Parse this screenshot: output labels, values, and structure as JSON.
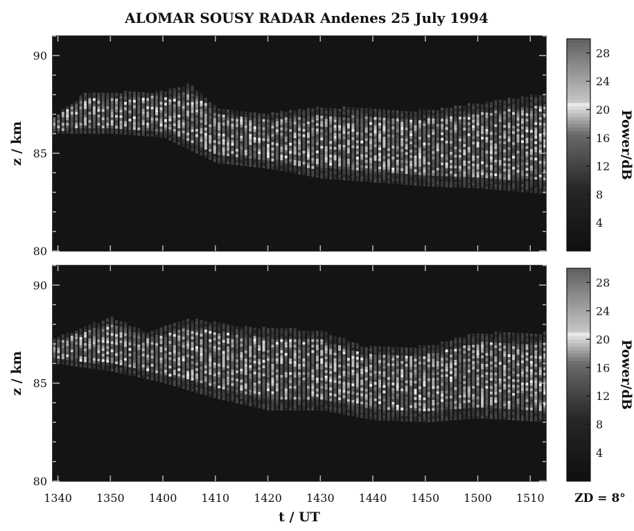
{
  "chart_data": {
    "type": "heatmap",
    "title": "ALOMAR SOUSY RADAR Andenes 25 July 1994",
    "xlabel": "t / UT",
    "ylabel": "z / km",
    "colorbar_label": "Power/dB",
    "annotation": "ZD = 8°",
    "x_ticks": [
      "1340",
      "1350",
      "1400",
      "1410",
      "1420",
      "1430",
      "1440",
      "1450",
      "1500",
      "1510"
    ],
    "y_ticks": [
      80,
      85,
      90
    ],
    "colorbar_ticks": [
      4,
      8,
      12,
      16,
      20,
      24,
      28
    ],
    "colorbar_range": [
      0,
      30
    ],
    "xlim": [
      "1339",
      "1513"
    ],
    "ylim": [
      80,
      91
    ],
    "grid": false,
    "colormap": "grayscale",
    "panels": [
      {
        "name": "",
        "layer_top_km": [
          {
            "t": "1339",
            "z": 86.8
          },
          {
            "t": "1345",
            "z": 88.0
          },
          {
            "t": "1400",
            "z": 88.1
          },
          {
            "t": "1405",
            "z": 88.5
          },
          {
            "t": "1410",
            "z": 87.3
          },
          {
            "t": "1420",
            "z": 87.0
          },
          {
            "t": "1430",
            "z": 87.3
          },
          {
            "t": "1440",
            "z": 87.2
          },
          {
            "t": "1450",
            "z": 87.1
          },
          {
            "t": "1500",
            "z": 87.5
          },
          {
            "t": "1513",
            "z": 88.0
          }
        ],
        "layer_bottom_km": [
          {
            "t": "1339",
            "z": 86.0
          },
          {
            "t": "1350",
            "z": 86.0
          },
          {
            "t": "1400",
            "z": 85.8
          },
          {
            "t": "1410",
            "z": 84.5
          },
          {
            "t": "1420",
            "z": 84.2
          },
          {
            "t": "1430",
            "z": 83.7
          },
          {
            "t": "1440",
            "z": 83.5
          },
          {
            "t": "1450",
            "z": 83.3
          },
          {
            "t": "1500",
            "z": 83.2
          },
          {
            "t": "1513",
            "z": 82.9
          }
        ],
        "peak_power_db": 24
      },
      {
        "name": "",
        "layer_top_km": [
          {
            "t": "1339",
            "z": 87.2
          },
          {
            "t": "1350",
            "z": 88.3
          },
          {
            "t": "1357",
            "z": 87.5
          },
          {
            "t": "1405",
            "z": 88.2
          },
          {
            "t": "1415",
            "z": 87.8
          },
          {
            "t": "1430",
            "z": 87.6
          },
          {
            "t": "1438",
            "z": 86.8
          },
          {
            "t": "1450",
            "z": 86.8
          },
          {
            "t": "1500",
            "z": 87.5
          },
          {
            "t": "1513",
            "z": 87.5
          }
        ],
        "layer_bottom_km": [
          {
            "t": "1339",
            "z": 86.0
          },
          {
            "t": "1350",
            "z": 85.6
          },
          {
            "t": "1400",
            "z": 85.0
          },
          {
            "t": "1410",
            "z": 84.2
          },
          {
            "t": "1420",
            "z": 83.6
          },
          {
            "t": "1430",
            "z": 83.6
          },
          {
            "t": "1440",
            "z": 83.1
          },
          {
            "t": "1450",
            "z": 83.0
          },
          {
            "t": "1500",
            "z": 83.2
          },
          {
            "t": "1513",
            "z": 83.0
          }
        ],
        "peak_power_db": 24
      }
    ]
  }
}
